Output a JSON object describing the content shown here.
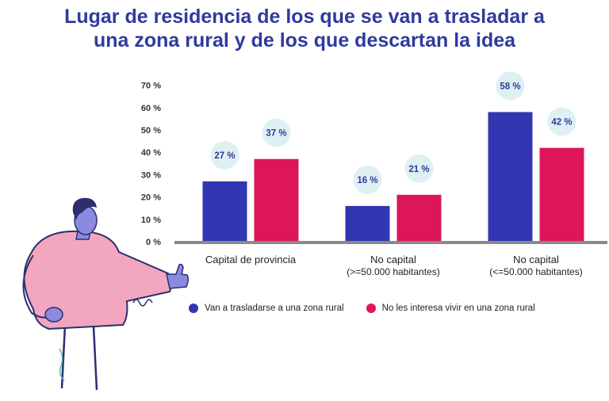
{
  "chart_data": {
    "type": "bar",
    "title": "Lugar de residencia de los que se van a trasladar a una zona rural y de los que descartan la idea",
    "title_lines": [
      "Lugar de residencia de los que se van a trasladar a",
      "una zona rural y de los que descartan la idea"
    ],
    "categories": [
      [
        "Capital de provincia"
      ],
      [
        "No capital",
        "(>=50.000 habitantes)"
      ],
      [
        "No capital",
        "(<=50.000 habitantes)"
      ]
    ],
    "series": [
      {
        "name": "Van a trasladarse a una zona rural",
        "color": "#3236b0",
        "values": [
          27,
          16,
          58
        ],
        "labels": [
          "27 %",
          "16 %",
          "58 %"
        ]
      },
      {
        "name": "No les interesa vivir en una zona rural",
        "color": "#dd1559",
        "values": [
          37,
          21,
          42
        ],
        "labels": [
          "37 %",
          "21 %",
          "42 %"
        ]
      }
    ],
    "ylim": [
      0,
      70
    ],
    "yticks": [
      0,
      10,
      20,
      30,
      40,
      50,
      60,
      70
    ],
    "ytick_labels": [
      "0 %",
      "10 %",
      "20 %",
      "30 %",
      "40 %",
      "50 %",
      "60 %",
      "70 %"
    ],
    "xlabel": "",
    "ylabel": "",
    "legend_position": "bottom",
    "label_bubble_color": "#dff0f2",
    "axis_color": "#8a8a8a"
  }
}
